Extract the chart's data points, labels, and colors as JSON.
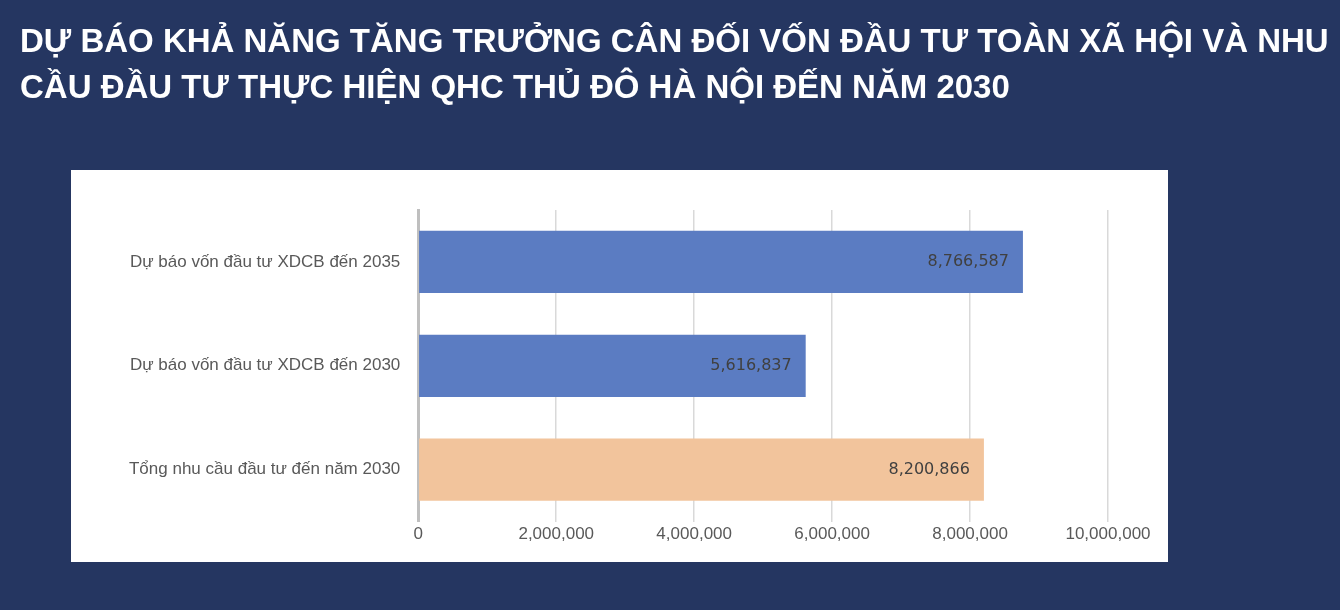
{
  "chart_data": {
    "type": "bar",
    "orientation": "horizontal",
    "title": "DỰ BÁO KHẢ NĂNG TĂNG TRƯỞNG CÂN ĐỐI VỐN ĐẦU TƯ TOÀN XÃ HỘI VÀ NHU CẦU ĐẦU TƯ THỰC HIỆN QHC THỦ ĐÔ HÀ NỘI ĐẾN NĂM 2030",
    "categories": [
      "Dự báo vốn đầu tư XDCB đến 2035",
      "Dự báo vốn đầu tư XDCB đến 2030",
      "Tổng nhu cầu đầu tư đến năm 2030"
    ],
    "values": [
      8766587,
      5616837,
      8200866
    ],
    "colors": [
      "#5b7cc2",
      "#5b7cc2",
      "#f2c49c"
    ],
    "xlim": [
      0,
      10000000
    ],
    "xticks": [
      0,
      {
        "value": 2000000,
        "label": "2,000,000"
      },
      {
        "value": 4000000,
        "label": "4,000,000"
      },
      {
        "value": 6000000,
        "label": "6,000,000"
      },
      {
        "value": 8000000,
        "label": "8,000,000"
      },
      {
        "value": 10000000,
        "label": "10,000,000"
      }
    ],
    "value_labels": [
      "8,766,587",
      "5,616,837",
      "8,200,866"
    ],
    "grid": "x"
  }
}
